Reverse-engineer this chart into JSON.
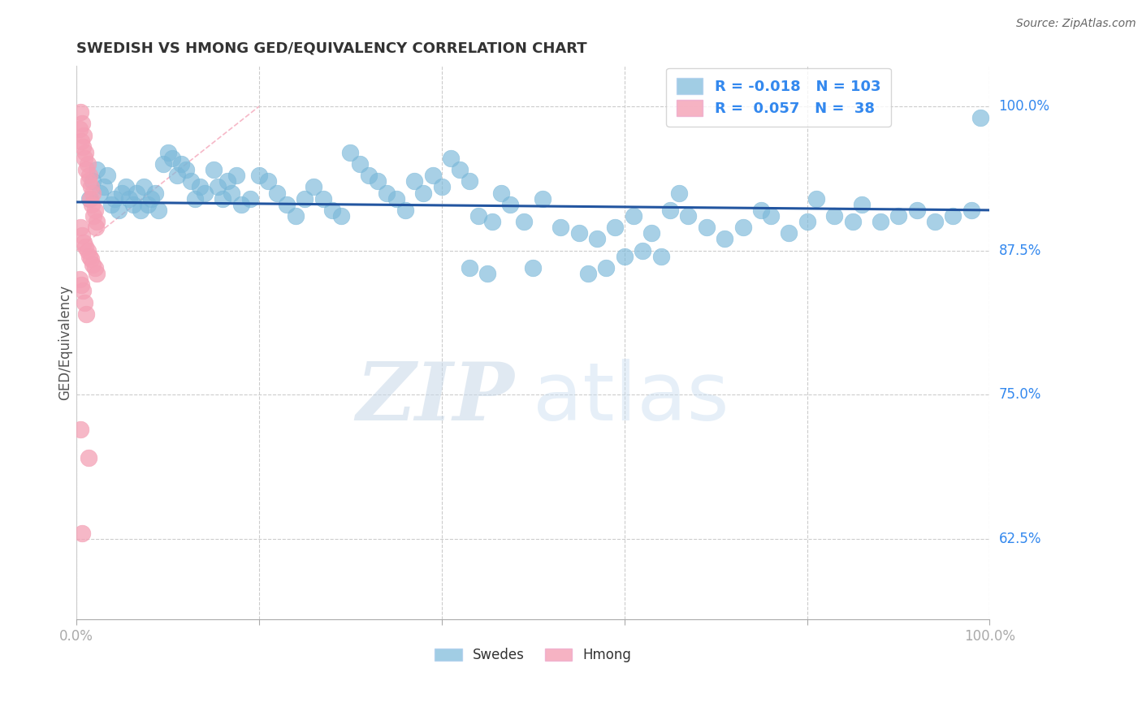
{
  "title": "SWEDISH VS HMONG GED/EQUIVALENCY CORRELATION CHART",
  "source": "Source: ZipAtlas.com",
  "ylabel": "GED/Equivalency",
  "ytick_labels": [
    "100.0%",
    "87.5%",
    "75.0%",
    "62.5%"
  ],
  "ytick_values": [
    1.0,
    0.875,
    0.75,
    0.625
  ],
  "xlim": [
    0.0,
    1.0
  ],
  "ylim": [
    0.555,
    1.035
  ],
  "legend_r_blue": "-0.018",
  "legend_n_blue": "103",
  "legend_r_pink": "0.057",
  "legend_n_pink": "38",
  "blue_color": "#7ab8d9",
  "pink_color": "#f4a0b5",
  "trendline_color": "#2255a0",
  "diag_color": "#f4a0b5",
  "watermark_zip": "ZIP",
  "watermark_atlas": "atlas",
  "blue_x": [
    0.014,
    0.018,
    0.022,
    0.026,
    0.03,
    0.034,
    0.038,
    0.042,
    0.046,
    0.05,
    0.054,
    0.058,
    0.062,
    0.066,
    0.07,
    0.074,
    0.078,
    0.082,
    0.086,
    0.09,
    0.095,
    0.1,
    0.105,
    0.11,
    0.115,
    0.12,
    0.125,
    0.13,
    0.135,
    0.14,
    0.15,
    0.155,
    0.16,
    0.165,
    0.17,
    0.175,
    0.18,
    0.19,
    0.2,
    0.21,
    0.22,
    0.23,
    0.24,
    0.25,
    0.26,
    0.27,
    0.28,
    0.29,
    0.3,
    0.31,
    0.32,
    0.33,
    0.34,
    0.35,
    0.36,
    0.37,
    0.38,
    0.39,
    0.4,
    0.41,
    0.42,
    0.43,
    0.44,
    0.455,
    0.465,
    0.475,
    0.49,
    0.51,
    0.53,
    0.55,
    0.57,
    0.59,
    0.61,
    0.63,
    0.65,
    0.66,
    0.67,
    0.69,
    0.71,
    0.73,
    0.75,
    0.76,
    0.78,
    0.8,
    0.81,
    0.83,
    0.85,
    0.86,
    0.88,
    0.9,
    0.92,
    0.94,
    0.96,
    0.98,
    0.6,
    0.62,
    0.64,
    0.58,
    0.56,
    0.43,
    0.45,
    0.5,
    0.99
  ],
  "blue_y": [
    0.92,
    0.935,
    0.945,
    0.925,
    0.93,
    0.94,
    0.915,
    0.92,
    0.91,
    0.925,
    0.93,
    0.92,
    0.915,
    0.925,
    0.91,
    0.93,
    0.915,
    0.92,
    0.925,
    0.91,
    0.95,
    0.96,
    0.955,
    0.94,
    0.95,
    0.945,
    0.935,
    0.92,
    0.93,
    0.925,
    0.945,
    0.93,
    0.92,
    0.935,
    0.925,
    0.94,
    0.915,
    0.92,
    0.94,
    0.935,
    0.925,
    0.915,
    0.905,
    0.92,
    0.93,
    0.92,
    0.91,
    0.905,
    0.96,
    0.95,
    0.94,
    0.935,
    0.925,
    0.92,
    0.91,
    0.935,
    0.925,
    0.94,
    0.93,
    0.955,
    0.945,
    0.935,
    0.905,
    0.9,
    0.925,
    0.915,
    0.9,
    0.92,
    0.895,
    0.89,
    0.885,
    0.895,
    0.905,
    0.89,
    0.91,
    0.925,
    0.905,
    0.895,
    0.885,
    0.895,
    0.91,
    0.905,
    0.89,
    0.9,
    0.92,
    0.905,
    0.9,
    0.915,
    0.9,
    0.905,
    0.91,
    0.9,
    0.905,
    0.91,
    0.87,
    0.875,
    0.87,
    0.86,
    0.855,
    0.86,
    0.855,
    0.86,
    0.99
  ],
  "pink_x": [
    0.004,
    0.006,
    0.008,
    0.01,
    0.012,
    0.014,
    0.016,
    0.018,
    0.02,
    0.022,
    0.003,
    0.005,
    0.007,
    0.009,
    0.011,
    0.013,
    0.015,
    0.017,
    0.019,
    0.021,
    0.004,
    0.006,
    0.008,
    0.01,
    0.012,
    0.014,
    0.016,
    0.018,
    0.02,
    0.022,
    0.003,
    0.005,
    0.007,
    0.009,
    0.011,
    0.013,
    0.004,
    0.006
  ],
  "pink_y": [
    0.995,
    0.985,
    0.975,
    0.96,
    0.95,
    0.94,
    0.93,
    0.925,
    0.91,
    0.9,
    0.98,
    0.97,
    0.965,
    0.955,
    0.945,
    0.935,
    0.92,
    0.915,
    0.905,
    0.895,
    0.895,
    0.888,
    0.882,
    0.878,
    0.875,
    0.87,
    0.868,
    0.863,
    0.86,
    0.855,
    0.85,
    0.845,
    0.84,
    0.83,
    0.82,
    0.695,
    0.72,
    0.63
  ]
}
